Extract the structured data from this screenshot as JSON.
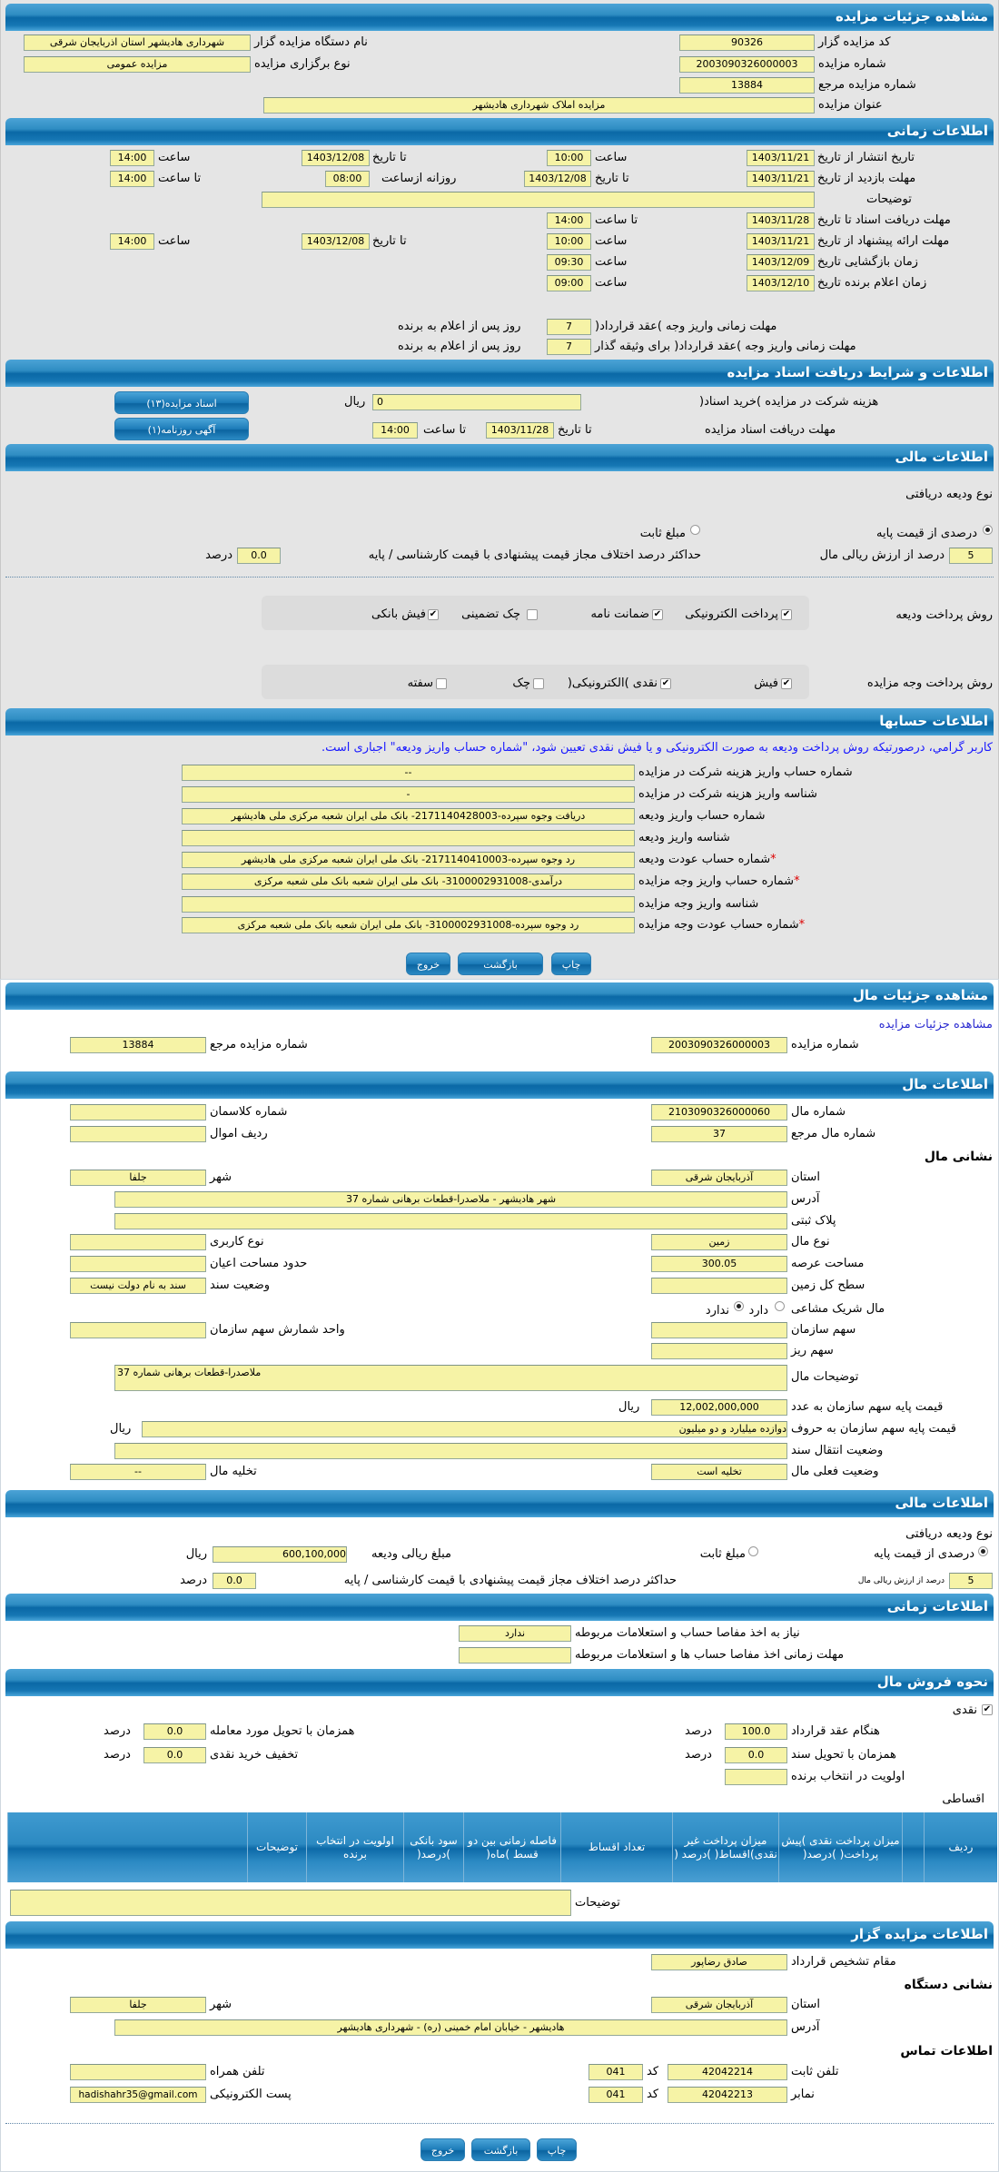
{
  "auction": {
    "title": "مشاهده جزئیات مزایده",
    "code_label": "کد مزایده گزار",
    "code": "90326",
    "number_label": "شماره مزایده",
    "number": "2003090326000003",
    "ref_label": "شماره مزایده مرجع",
    "ref": "13884",
    "subject_label": "عنوان مزایده",
    "subject": "مزایده املاک شهرداری هادیشهر",
    "org_label": "نام دستگاه مزایده گزار",
    "org": "شهرداری هادیشهر استان اذربایجان شرقی",
    "type_label": "نوع برگزاری مزایده",
    "type": "مزایده عمومی"
  },
  "timing": {
    "title": "اطلاعات زمانی",
    "publish_label": "تاریخ انتشار  از تاریخ",
    "publish_from": "1403/11/21",
    "publish_from_time": "10:00",
    "publish_to": "1403/12/08",
    "publish_to_time": "14:00",
    "visit_label": "مهلت بازدید  از تاریخ",
    "visit_from": "1403/11/21",
    "visit_to": "1403/12/08",
    "visit_daily_from": "08:00",
    "visit_to_time": "14:00",
    "desc_label": "توضیحات",
    "desc": "",
    "docs_label": "مهلت دریافت اسناد  تا تاریخ",
    "docs_to": "1403/11/28",
    "docs_time": "14:00",
    "offer_label": "مهلت ارائه پیشنهاد  از تاریخ",
    "offer_from": "1403/11/21",
    "offer_from_time": "10:00",
    "offer_to": "1403/12/08",
    "offer_to_time": "14:00",
    "opening_label": "زمان بازگشایی   تاریخ",
    "opening_date": "1403/12/09",
    "opening_time": "09:30",
    "winner_label": "زمان اعلام برنده   تاریخ",
    "winner_date": "1403/12/10",
    "winner_time": "09:00",
    "time": "ساعت",
    "to_date": "تا تاریخ",
    "to_time": "تا ساعت",
    "daily_from": "روزانه ازساعت",
    "deadline1_label": "مهلت زمانی واریز وجه )عقد قرارداد(",
    "deadline1": "7",
    "deadline2_label": "مهلت زمانی واریز وجه )عقد قرارداد( برای وثیقه گذار",
    "deadline2": "7",
    "days_after": "روز پس از اعلام به برنده"
  },
  "docs": {
    "title": "اطلاعات و شرایط دریافت اسناد مزایده",
    "fee_label": "هزینه شرکت در مزایده )خرید اسناد(",
    "fee": "0",
    "rial": "ریال",
    "deadline_label": "مهلت دریافت اسناد مزایده",
    "to_date": "تا تاریخ",
    "date": "1403/11/28",
    "to_time": "تا ساعت",
    "time": "14:00",
    "btn_docs": "اسناد مزایده(۱۳)",
    "btn_news": "آگهی روزنامه(۱)"
  },
  "finance": {
    "title": "اطلاعات مالی",
    "deposit_type_label": "نوع ودیعه دریافتی",
    "opt_percent": "درصدی از قیمت پایه",
    "opt_fixed": "مبلغ ثابت",
    "selected": "percent",
    "percent": "5",
    "percent_label": "درصد از ارزش ریالی مال",
    "max_diff_label": "حداکثر درصد اختلاف مجاز قیمت پیشنهادی با قیمت کارشناسی / پایه",
    "max_diff": "0.0",
    "percent_unit": "درصد",
    "deposit_method_label": "روش پرداخت ودیعه",
    "deposit_methods": [
      {
        "label": "پرداخت الکترونیکی",
        "checked": true
      },
      {
        "label": "ضمانت نامه",
        "checked": true
      },
      {
        "label": "چک تضمینی",
        "checked": false
      },
      {
        "label": "فیش بانکی",
        "checked": true
      }
    ],
    "payment_method_label": "روش پرداخت وجه مزایده",
    "payment_methods": [
      {
        "label": "فیش",
        "checked": true
      },
      {
        "label": "نقدی )الکترونیکی(",
        "checked": true
      },
      {
        "label": "چک",
        "checked": false
      },
      {
        "label": "سفته",
        "checked": false
      }
    ]
  },
  "accounts": {
    "title": "اطلاعات حسابها",
    "note": "کاربر گرامي، درصورتیکه روش پرداخت ودیعه به صورت الکترونیکی و یا فیش نقدی تعیین شود، \"شماره حساب واریز ودیعه\" اجباری است.",
    "rows": [
      {
        "label": "شماره حساب واریز هزینه شرکت در مزایده",
        "value": "--"
      },
      {
        "label": "شناسه واریز هزینه شرکت در مزایده",
        "value": "-"
      },
      {
        "label": "شماره حساب واریز ودیعه",
        "value": "دریافت وجوه سپرده-2171140428003- بانک ملی ایران شعبه مرکزی ملی هادیشهر"
      },
      {
        "label": "شناسه واریز ودیعه",
        "value": ""
      },
      {
        "label": "شماره حساب عودت ودیعه",
        "value": "رد وجوه سپرده-2171140410003- بانک ملی ایران شعبه مرکزی ملی هادیشهر",
        "required": true
      },
      {
        "label": "شماره حساب واریز وجه مزایده",
        "value": "درآمدی-3100002931008- بانک ملی ایران شعبه بانک ملی شعبه مرکزی",
        "required": true
      },
      {
        "label": "شناسه واریز وجه مزایده",
        "value": ""
      },
      {
        "label": "شماره حساب عودت وجه مزایده",
        "value": "رد وجوه سپرده-3100002931008- بانک ملی ایران شعبه بانک ملی شعبه مرکزی",
        "required": true
      }
    ],
    "required_mark": "*"
  },
  "buttons": {
    "print": "چاپ",
    "back": "بازگشت",
    "exit": "خروج"
  },
  "item": {
    "title": "مشاهده جزئیات مال",
    "auction_link": "مشاهده جزئیات مزایده",
    "number_label": "شماره مزایده",
    "number": "2003090326000003",
    "ref_label": "شماره مزایده مرجع",
    "ref": "13884"
  },
  "item_info": {
    "title": "اطلاعات مال",
    "item_no_label": "شماره مال",
    "item_no": "2103090326000060",
    "classman_label": "شماره کلاسمان",
    "classman": "",
    "item_ref_label": "شماره مال مرجع",
    "item_ref": "37",
    "row_label": "ردیف اموال",
    "row": "",
    "address_heading": "نشانی مال",
    "province_label": "استان",
    "province": "آذربایجان شرقی",
    "city_label": "شهر",
    "city": "جلفا",
    "address_label": "آدرس",
    "address": "شهر هادیشهر - ملاصدرا-قطعات برهانی شماره 37",
    "plaque_label": "پلاک ثبتی",
    "plaque": "",
    "type_label": "نوع مال",
    "type": "زمین",
    "usage_label": "نوع کاربری",
    "usage": "",
    "area_label": "مساحت عرصه",
    "area": "300.05",
    "building_label": "حدود مساحت اعیان",
    "building": "",
    "level_label": "سطح کل زمین",
    "level": "",
    "deed_label": "وضعیت سند",
    "deed": "سند به نام دولت نیست",
    "shared_label": "مال شریک مشاعی",
    "shared_yes": "دارد",
    "shared_no": "ندارد",
    "shared": "no",
    "org_share_label": "سهم سازمان",
    "org_share": "",
    "unit_label": "واحد شمارش سهم سازمان",
    "unit": "",
    "minor_share_label": "سهم ریز",
    "minor_share": "",
    "desc_label": "توضیحات مال",
    "desc": "ملاصدرا-قطعات برهانی شماره 37",
    "price_num_label": "قیمت پایه سهم سازمان به عدد",
    "price_num": "12,002,000,000",
    "price_text_label": "قیمت پایه سهم سازمان به حروف",
    "price_text": "دوازده میلیارد و دو میلیون",
    "rial": "ریال",
    "transfer_label": "وضعیت انتقال سند",
    "transfer": "",
    "status_label": "وضعیت فعلی مال",
    "status": "تخلیه است",
    "evac_label": "تخلیه مال",
    "evac": "--"
  },
  "item_finance": {
    "title": "اطلاعات مالی",
    "deposit_type_label": "نوع ودیعه دریافتی",
    "opt_percent": "درصدی از قیمت پایه",
    "opt_fixed": "مبلغ ثابت",
    "selected": "percent",
    "deposit_amount_label": "مبلغ ریالی ودیعه",
    "deposit_amount": "600,100,000",
    "rial": "ریال",
    "percent": "5",
    "percent_label": "درصد از ارزش ریالی مال",
    "max_diff_label": "حداکثر درصد اختلاف مجاز قیمت پیشنهادی با قیمت کارشناسی / پایه",
    "max_diff": "0.0",
    "percent_unit": "درصد"
  },
  "item_timing": {
    "title": "اطلاعات زمانی",
    "clearance_label": "نیاز به اخذ مفاصا حساب و استعلامات مربوطه",
    "clearance": "ندارد",
    "clearance_deadline_label": "مهلت زمانی اخذ مفاصا حساب ها و استعلامات مربوطه",
    "clearance_deadline": ""
  },
  "sale": {
    "title": "نحوه فروش مال",
    "cash_label": "نقدی",
    "cash": true,
    "contract_label": "هنگام عقد قرارداد",
    "contract": "100.0",
    "delivery_label": "همزمان با تحویل مورد معامله",
    "delivery": "0.0",
    "deed_label": "همزمان با تحویل سند",
    "deed": "0.0",
    "discount_label": "تخفیف خرید نقدی",
    "discount": "0.0",
    "priority_label": "اولویت در انتخاب برنده",
    "priority": "",
    "percent_unit": "درصد",
    "installment_label": "اقساطی",
    "table_headers": [
      "ردیف",
      "",
      "میزان پرداخت نقدی )پیش پرداخت( )درصد(",
      "میزان پرداخت غیر نقدی)اقساط( )درصد (",
      "تعداد اقساط",
      "فاصله زمانی بین دو قسط )ماه(",
      "سود بانکی )درصد(",
      "اولویت در انتخاب برنده",
      "توضیحات",
      ""
    ],
    "desc_label": "توضیحات",
    "desc": ""
  },
  "auctioneer": {
    "title": "اطلاعات مزایده گزار",
    "authority_label": "مقام تشخیص قرارداد",
    "authority": "صادق رضاپور",
    "org_address_heading": "نشانی دستگاه",
    "province_label": "استان",
    "province": "آذربایجان شرقی",
    "city_label": "شهر",
    "city": "جلفا",
    "address_label": "آدرس",
    "address": "هادیشهر - خیابان امام خمینی (ره) - شهرداری هادیشهر",
    "contact_heading": "اطلاعات تماس",
    "phone_label": "تلفن ثابت",
    "phone": "42042214",
    "phone_code": "041",
    "code_label": "کد",
    "fax_label": "نمابر",
    "fax": "42042213",
    "fax_code": "041",
    "mobile_label": "تلفن همراه",
    "mobile": "",
    "email_label": "پست الکترونیکی",
    "email": "hadishahr35@gmail.com"
  },
  "colors": {
    "header_blue": "#1677b4",
    "field_yellow": "#f6f3a6",
    "note_blue": "#1a1aff",
    "required_red": "#dd0000"
  }
}
